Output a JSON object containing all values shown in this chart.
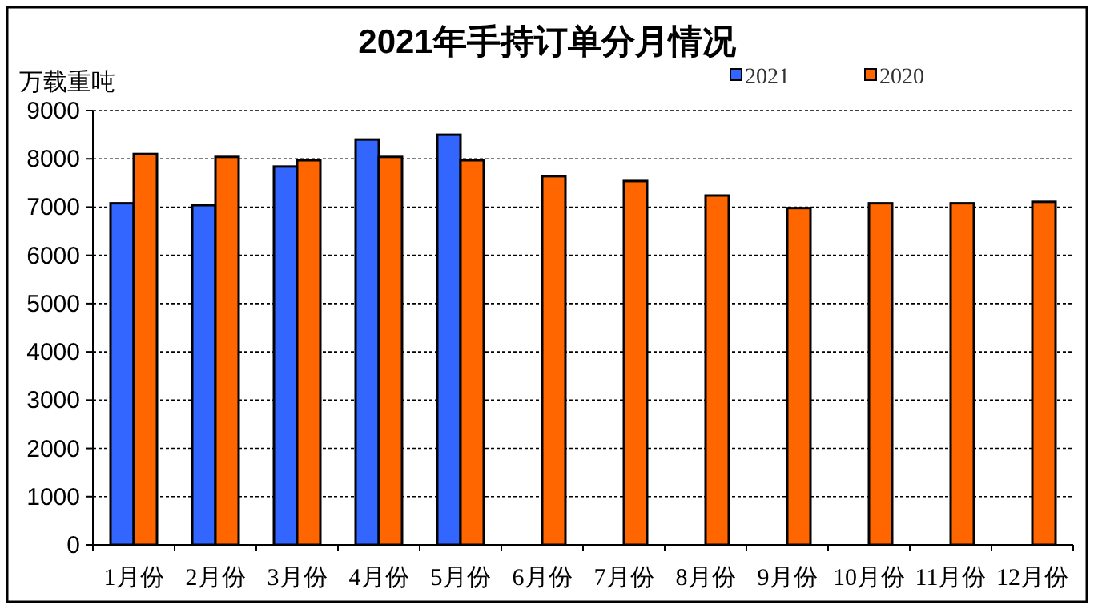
{
  "chart_data": {
    "type": "bar",
    "title": "2021年手持订单分月情况",
    "ylabel": "万载重吨",
    "categories": [
      "1月份",
      "2月份",
      "3月份",
      "4月份",
      "5月份",
      "6月份",
      "7月份",
      "8月份",
      "9月份",
      "10月份",
      "11月份",
      "12月份"
    ],
    "series": [
      {
        "name": "2021",
        "color": "#3366ff",
        "values": [
          7080,
          7040,
          7840,
          8400,
          8500,
          null,
          null,
          null,
          null,
          null,
          null,
          null
        ]
      },
      {
        "name": "2020",
        "color": "#ff6600",
        "values": [
          8100,
          8040,
          7970,
          8040,
          7970,
          7640,
          7540,
          7240,
          6980,
          7080,
          7080,
          7110
        ]
      }
    ],
    "ylim": [
      0,
      9000
    ],
    "yticks": [
      0,
      1000,
      2000,
      3000,
      4000,
      5000,
      6000,
      7000,
      8000,
      9000
    ],
    "grid": "y",
    "legend": "top right"
  }
}
